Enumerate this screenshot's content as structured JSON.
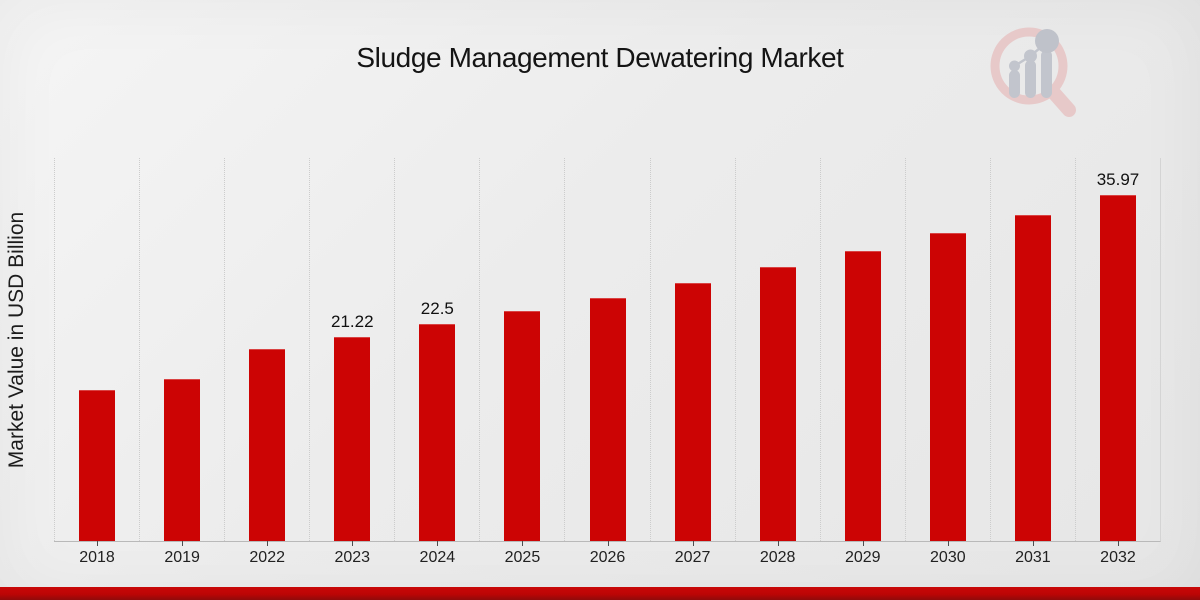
{
  "chart_data": {
    "type": "bar",
    "title": "Sludge Management Dewatering Market",
    "xlabel": "",
    "ylabel": "Market Value in USD Billion",
    "categories": [
      "2018",
      "2019",
      "2022",
      "2023",
      "2024",
      "2025",
      "2026",
      "2027",
      "2028",
      "2029",
      "2030",
      "2031",
      "2032"
    ],
    "values": [
      15.7,
      16.85,
      19.95,
      21.22,
      22.5,
      23.86,
      25.3,
      26.83,
      28.45,
      30.17,
      31.99,
      33.92,
      35.97
    ],
    "shown_value_labels": [
      "",
      "",
      "",
      "21.22",
      "22.5",
      "",
      "",
      "",
      "",
      "",
      "",
      "",
      "35.97"
    ],
    "ylim": [
      0,
      39.8
    ],
    "grid": "vertical-only",
    "legend": "none",
    "colors": {
      "bar": "#cc0404",
      "footer_band": "#bc0505",
      "gridline": "#cccccc",
      "axis_line": "#b9b9b9",
      "text": "#141414"
    }
  },
  "watermark": {
    "icon": "magnifier-bar-chart-logo"
  }
}
